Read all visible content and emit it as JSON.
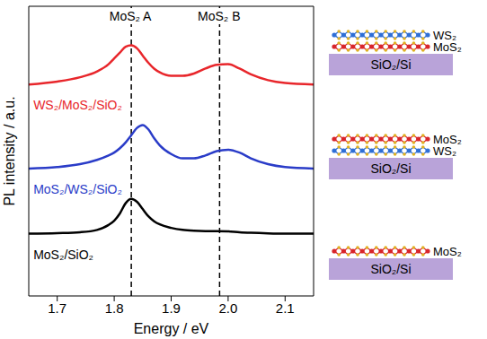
{
  "chart_data": {
    "type": "line",
    "x_label": "Energy / eV",
    "y_label": "PL intensity / a.u.",
    "xlim": [
      1.65,
      2.15
    ],
    "xticks": [
      1.7,
      1.8,
      1.9,
      {
        "value": 2,
        "label": "2.0"
      },
      2.1
    ],
    "ylim": [
      0,
      10
    ],
    "tick_labels": "x",
    "legend": false,
    "grid": false,
    "x": [
      1.65,
      1.7,
      1.74,
      1.77,
      1.79,
      1.8,
      1.81,
      1.82,
      1.83,
      1.84,
      1.85,
      1.86,
      1.87,
      1.88,
      1.9,
      1.92,
      1.94,
      1.96,
      1.98,
      2.0,
      2.02,
      2.04,
      2.07,
      2.1,
      2.15
    ],
    "series": [
      {
        "name": "WS₂/MoS₂/SiO₂",
        "color": "#e8262b",
        "values": [
          7.3,
          7.4,
          7.55,
          7.75,
          8.0,
          8.2,
          8.4,
          8.6,
          8.65,
          8.55,
          8.3,
          8.05,
          7.85,
          7.72,
          7.6,
          7.6,
          7.68,
          7.85,
          7.98,
          8.0,
          7.85,
          7.65,
          7.45,
          7.35,
          7.3
        ]
      },
      {
        "name": "MoS₂/WS₂/SiO₂",
        "color": "#2a3cc8",
        "values": [
          4.4,
          4.45,
          4.55,
          4.7,
          4.85,
          4.95,
          5.1,
          5.3,
          5.55,
          5.8,
          5.9,
          5.75,
          5.45,
          5.2,
          4.9,
          4.75,
          4.75,
          4.85,
          5.0,
          5.05,
          4.95,
          4.75,
          4.55,
          4.45,
          4.4
        ]
      },
      {
        "name": "MoS₂/SiO₂",
        "color": "#000000",
        "values": [
          2.15,
          2.17,
          2.2,
          2.28,
          2.45,
          2.6,
          2.85,
          3.2,
          3.35,
          3.25,
          3.0,
          2.75,
          2.58,
          2.47,
          2.35,
          2.28,
          2.25,
          2.24,
          2.24,
          2.23,
          2.2,
          2.18,
          2.16,
          2.15,
          2.15
        ]
      }
    ],
    "annotations": [
      {
        "text": "MoS₂ A",
        "x": 1.83
      },
      {
        "text": "MoS₂ B",
        "x": 1.985
      }
    ],
    "schematics": [
      {
        "layers": [
          {
            "name": "WS₂",
            "color": "#2f6fd6"
          },
          {
            "name": "MoS₂",
            "color": "#d8262b"
          }
        ],
        "substrate": "SiO₂/Si"
      },
      {
        "layers": [
          {
            "name": "MoS₂",
            "color": "#d8262b"
          },
          {
            "name": "WS₂",
            "color": "#2f6fd6"
          }
        ],
        "substrate": "SiO₂/Si"
      },
      {
        "layers": [
          {
            "name": "MoS₂",
            "color": "#d8262b"
          }
        ],
        "substrate": "SiO₂/Si"
      }
    ]
  }
}
